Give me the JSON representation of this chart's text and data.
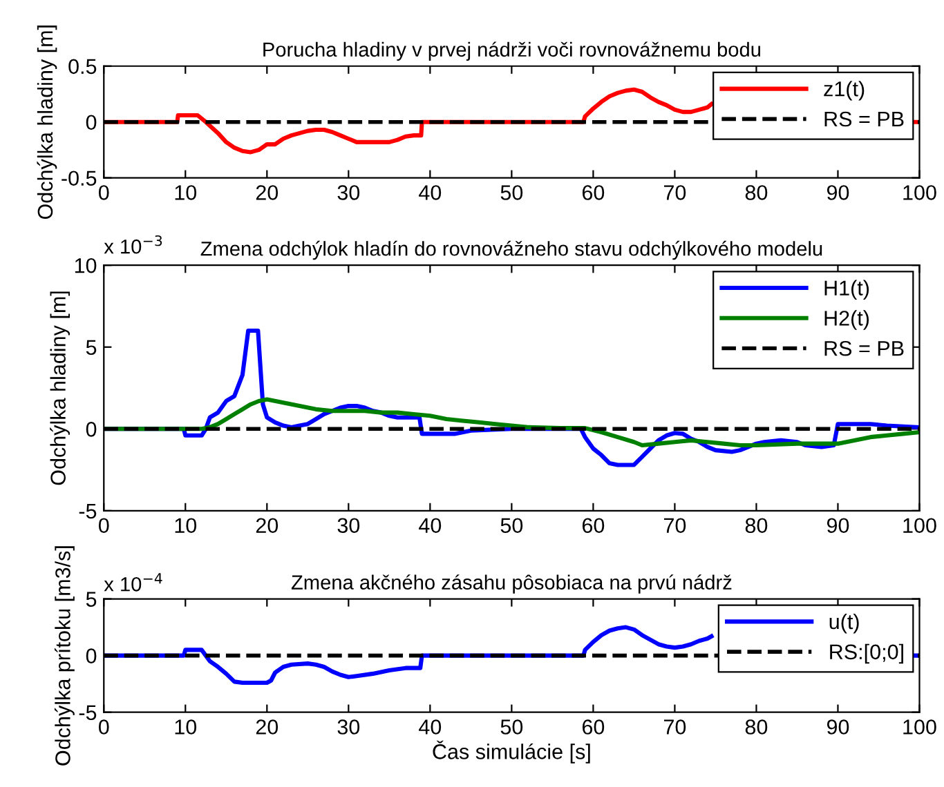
{
  "chart_data": [
    {
      "type": "line",
      "title": "Porucha hladiny v prvej nádrži voči rovnovážnemu bodu",
      "ylabel": "Odchýlka hladiny [m]",
      "xlim": [
        0,
        100
      ],
      "xticks": [
        0,
        10,
        20,
        30,
        40,
        50,
        60,
        70,
        80,
        90,
        100
      ],
      "ylim": [
        -0.5,
        0.5
      ],
      "yticks": [
        -0.5,
        0,
        0.5
      ],
      "grid": false,
      "legend": "top right",
      "series": [
        {
          "name": "z1(t)",
          "color": "#ff0000",
          "line_style": "solid",
          "x": [
            0,
            9,
            9.1,
            11.5,
            12.5,
            14,
            15,
            16,
            17,
            18,
            19,
            20,
            21,
            22,
            23,
            24,
            25,
            26,
            27,
            28,
            29,
            30,
            31,
            32,
            35,
            36,
            37,
            38,
            38.9,
            39,
            58.8,
            59,
            60,
            61,
            62,
            63,
            64,
            65,
            66,
            67,
            68,
            69,
            70,
            71,
            72,
            73,
            74,
            74.5,
            75,
            99,
            100
          ],
          "values": [
            0,
            0,
            0.06,
            0.06,
            0,
            -0.1,
            -0.18,
            -0.23,
            -0.26,
            -0.27,
            -0.25,
            -0.2,
            -0.2,
            -0.15,
            -0.12,
            -0.1,
            -0.08,
            -0.07,
            -0.07,
            -0.09,
            -0.12,
            -0.15,
            -0.18,
            -0.18,
            -0.18,
            -0.16,
            -0.13,
            -0.12,
            -0.12,
            0,
            0,
            0.05,
            0.12,
            0.18,
            0.23,
            0.26,
            0.28,
            0.29,
            0.27,
            0.22,
            0.18,
            0.15,
            0.11,
            0.09,
            0.09,
            0.11,
            0.13,
            0.16,
            null,
            0,
            0
          ]
        },
        {
          "name": "RS = PB",
          "color": "#000000",
          "line_style": "dashed",
          "x": [
            0,
            100
          ],
          "values": [
            0,
            0
          ]
        }
      ]
    },
    {
      "type": "line",
      "title": "Zmena odchýlok hladín do rovnovážneho stavu odchýlkového modelu",
      "ylabel": "Odchýlka hladiny [m]",
      "annotations": [
        "x 10$^{−3}$"
      ],
      "xlim": [
        0,
        100
      ],
      "xticks": [
        0,
        10,
        20,
        30,
        40,
        50,
        60,
        70,
        80,
        90,
        100
      ],
      "ylim": [
        -5,
        10
      ],
      "yticks": [
        -5,
        0,
        5,
        10
      ],
      "grid": false,
      "legend": "top right",
      "series": [
        {
          "name": "H1(t)",
          "color": "#0000ff",
          "line_style": "solid",
          "x": [
            0,
            9.8,
            10,
            12,
            12.5,
            13,
            14,
            15,
            16,
            17,
            17.7,
            18.9,
            19.5,
            20,
            21,
            22,
            23,
            24,
            25,
            26,
            27,
            28,
            29,
            30,
            31,
            32,
            33,
            34,
            35,
            36,
            38.7,
            39,
            43,
            45,
            50,
            58.5,
            59,
            60,
            61,
            62,
            63,
            65,
            66,
            67,
            68,
            69,
            70,
            71,
            72,
            73,
            74,
            75,
            77,
            78,
            79,
            80,
            81,
            83,
            85,
            86,
            88,
            89.5,
            90,
            94,
            96,
            100
          ],
          "values": [
            0,
            0,
            -0.4,
            -0.4,
            0,
            0.7,
            1.0,
            1.7,
            2.0,
            3.3,
            6.0,
            6.0,
            1.5,
            0.7,
            0.4,
            0.2,
            0.1,
            0.2,
            0.3,
            0.6,
            0.9,
            1.1,
            1.3,
            1.4,
            1.4,
            1.3,
            1.1,
            1.0,
            0.8,
            0.7,
            0.7,
            -0.3,
            -0.3,
            -0.1,
            0,
            0,
            -0.5,
            -1.2,
            -1.6,
            -2.1,
            -2.2,
            -2.2,
            -1.7,
            -1.2,
            -0.7,
            -0.4,
            -0.25,
            -0.3,
            -0.6,
            -0.8,
            -1.1,
            -1.3,
            -1.4,
            -1.3,
            -1.1,
            -0.9,
            -0.8,
            -0.7,
            -0.8,
            -1.0,
            -1.1,
            -1.0,
            0.3,
            0.3,
            0.2,
            0.1
          ]
        },
        {
          "name": "H2(t)",
          "color": "#008000",
          "line_style": "solid",
          "x": [
            0,
            12,
            13,
            14,
            15,
            16,
            17,
            18,
            19,
            20,
            22,
            24,
            26,
            28,
            30,
            32,
            34,
            36,
            38,
            40,
            42,
            44,
            46,
            48,
            50,
            52,
            56,
            59,
            61,
            63,
            65,
            66,
            68,
            70,
            72,
            74,
            76,
            78,
            80,
            85,
            88,
            90,
            92,
            94,
            96,
            98,
            100
          ],
          "values": [
            0,
            0,
            0.1,
            0.3,
            0.6,
            0.9,
            1.2,
            1.5,
            1.7,
            1.8,
            1.6,
            1.4,
            1.2,
            1.1,
            1.1,
            1.1,
            1.0,
            1.0,
            0.9,
            0.8,
            0.6,
            0.5,
            0.4,
            0.3,
            0.2,
            0.1,
            0.05,
            0.05,
            -0.2,
            -0.5,
            -0.8,
            -1.0,
            -0.9,
            -0.8,
            -0.7,
            -0.8,
            -0.9,
            -1.0,
            -1.0,
            -0.9,
            -0.9,
            -0.9,
            -0.7,
            -0.5,
            -0.4,
            -0.3,
            -0.2
          ]
        },
        {
          "name": "RS = PB",
          "color": "#000000",
          "line_style": "dashed",
          "x": [
            0,
            100
          ],
          "values": [
            0,
            0
          ]
        }
      ]
    },
    {
      "type": "line",
      "title": "Zmena akčného zásahu pôsobiaca na prvú nádrž",
      "xlabel": "Čas simulácie [s]",
      "ylabel": "Odchýlka prítoku [m3/s]",
      "annotations": [
        "x 10$^{−4}$"
      ],
      "xlim": [
        0,
        100
      ],
      "xticks": [
        0,
        10,
        20,
        30,
        40,
        50,
        60,
        70,
        80,
        90,
        100
      ],
      "ylim": [
        -5,
        5
      ],
      "yticks": [
        -5,
        0,
        5
      ],
      "grid": false,
      "legend": "top right",
      "series": [
        {
          "name": "u(t)",
          "color": "#0000ff",
          "line_style": "solid",
          "x": [
            0,
            9.8,
            10,
            12,
            12.5,
            13,
            14,
            15,
            16,
            17,
            20,
            20.5,
            21,
            22,
            23,
            25,
            26,
            27,
            28,
            29,
            30,
            31,
            33,
            35,
            37,
            38.8,
            39,
            58.8,
            59,
            60,
            61,
            62,
            63,
            64,
            65,
            66,
            67,
            68,
            69,
            70,
            71,
            72,
            73,
            74,
            74.5,
            75,
            99,
            100
          ],
          "values": [
            0,
            0,
            0.5,
            0.5,
            0,
            -0.5,
            -1.0,
            -1.6,
            -2.3,
            -2.4,
            -2.4,
            -2.2,
            -1.5,
            -1.0,
            -0.8,
            -0.7,
            -0.8,
            -1.0,
            -1.4,
            -1.7,
            -1.9,
            -1.8,
            -1.6,
            -1.3,
            -1.1,
            -1.1,
            0,
            0,
            0.5,
            1.2,
            1.8,
            2.2,
            2.4,
            2.5,
            2.3,
            1.8,
            1.4,
            1.0,
            0.8,
            0.7,
            0.8,
            1.0,
            1.3,
            1.5,
            1.7,
            null,
            0,
            0
          ]
        },
        {
          "name": "RS:[0;0]",
          "color": "#000000",
          "line_style": "dashed",
          "x": [
            0,
            100
          ],
          "values": [
            0,
            0
          ]
        }
      ]
    }
  ]
}
